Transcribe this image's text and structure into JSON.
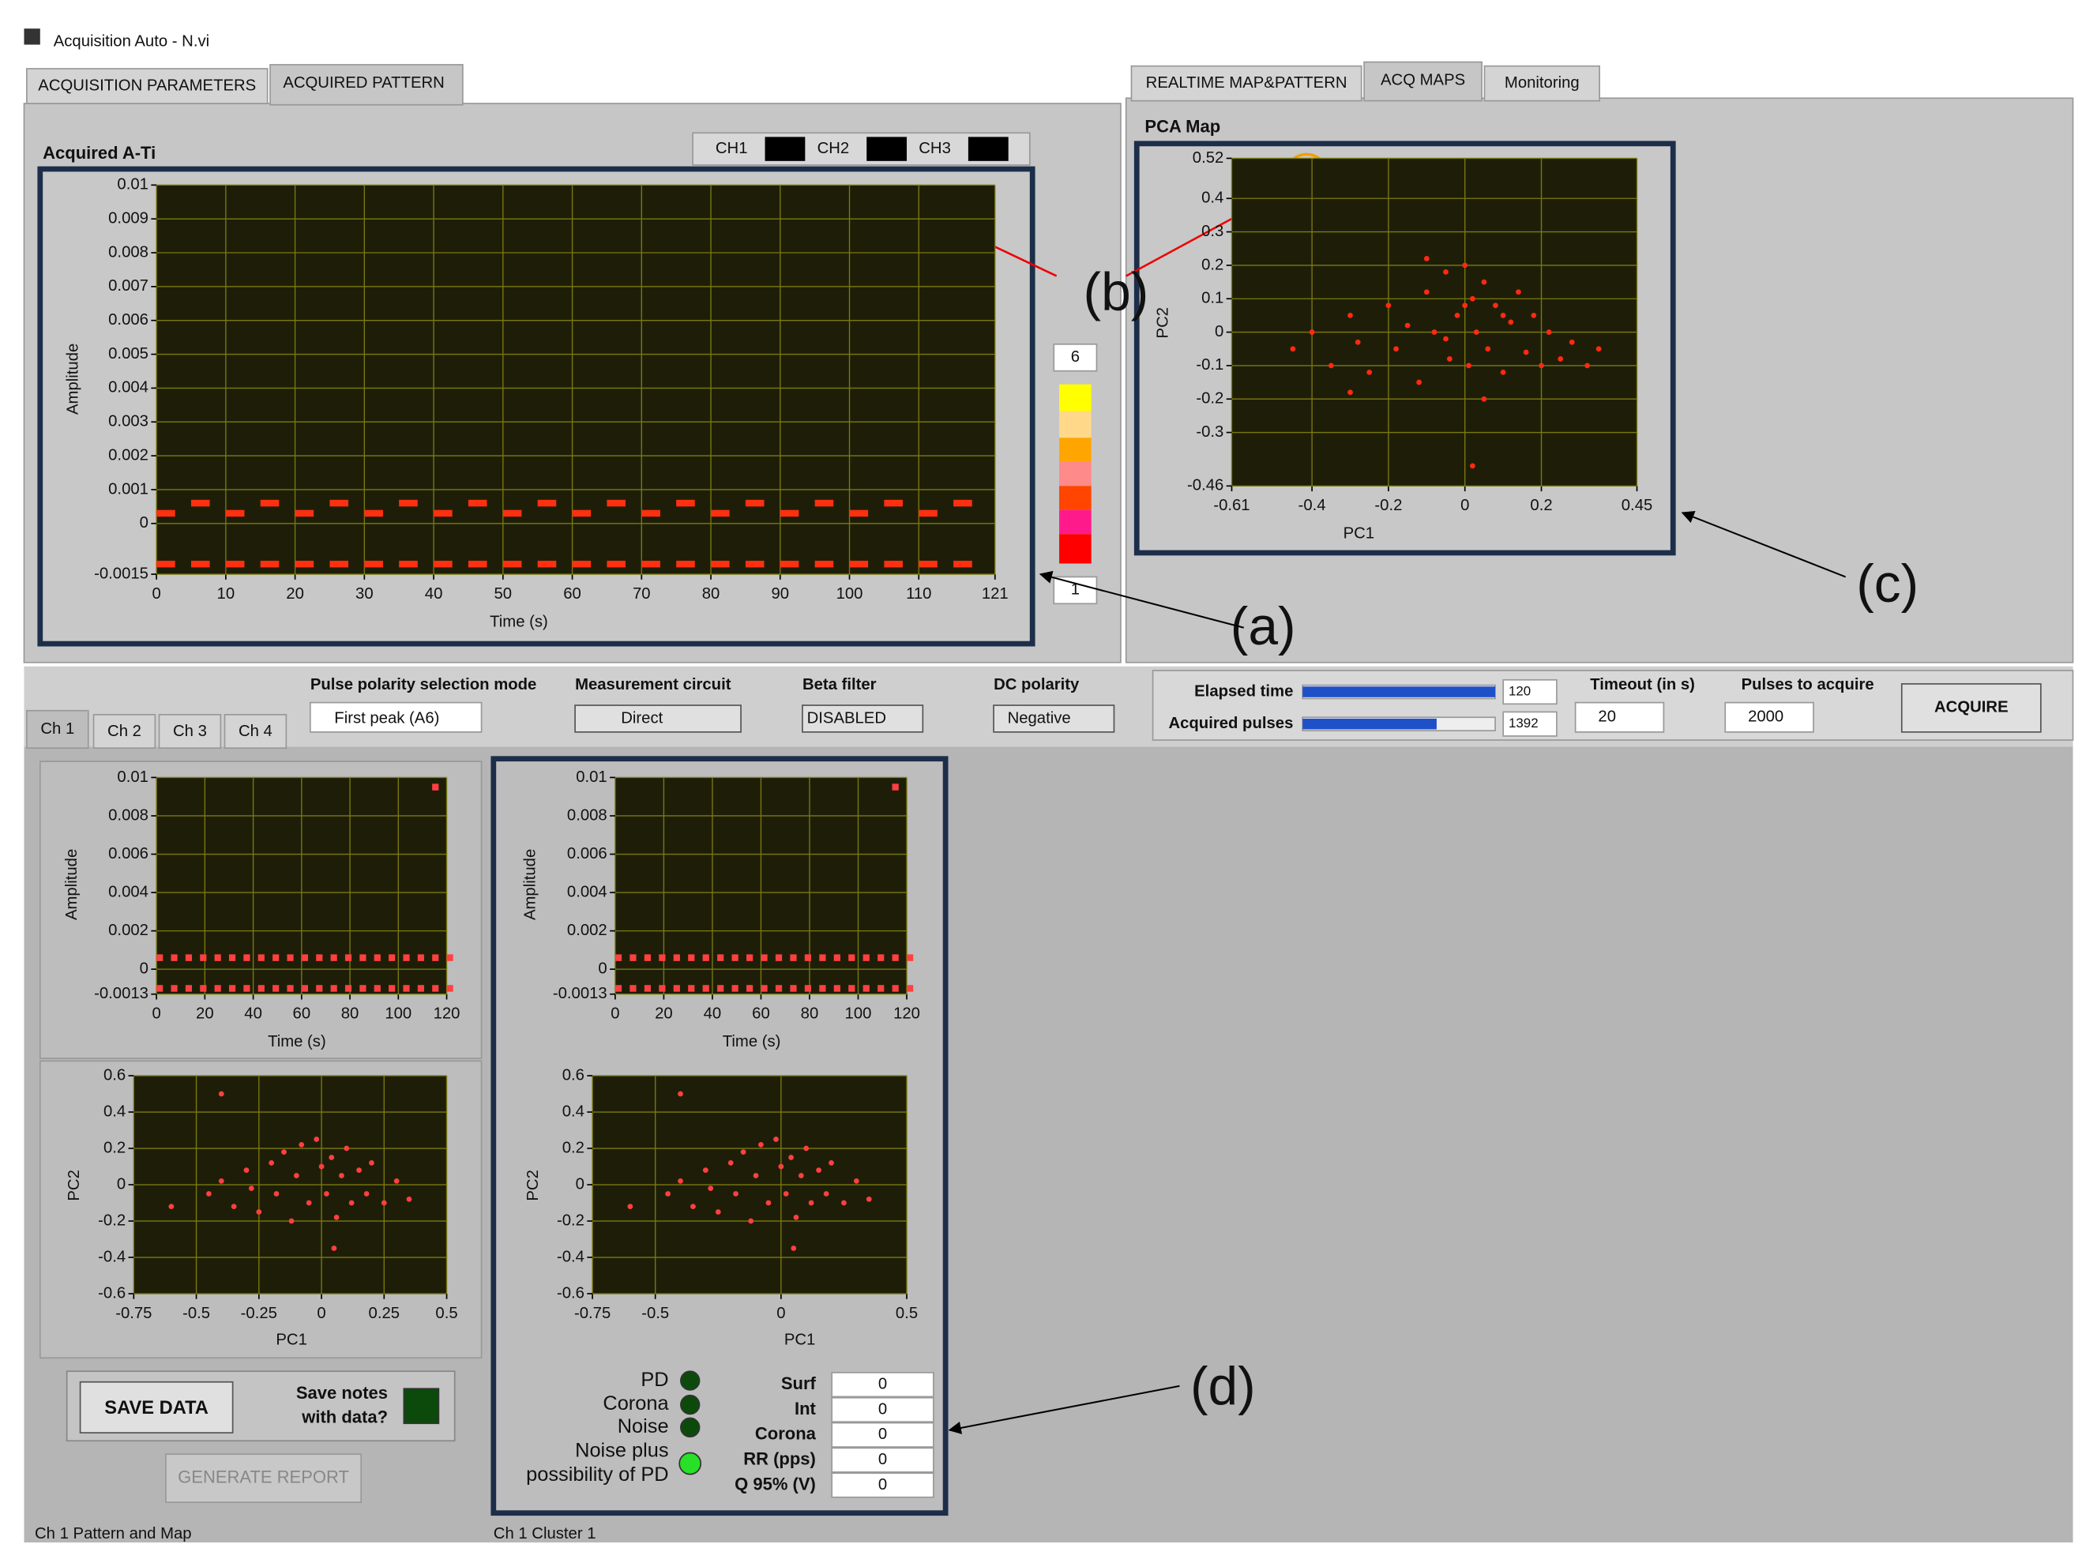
{
  "window_title": "Acquisition Auto - N.vi",
  "left_tabs": [
    "ACQUISITION PARAMETERS",
    "ACQUIRED PATTERN"
  ],
  "right_tabs": [
    "REALTIME MAP&PATTERN",
    "ACQ MAPS",
    "Monitoring"
  ],
  "channel_legend": [
    "CH1",
    "CH2",
    "CH3"
  ],
  "color_scale": {
    "max": 6,
    "min": 1
  },
  "annotations": [
    "(a)",
    "(b)",
    "(c)",
    "(d)"
  ],
  "controls": {
    "polarity_label": "Pulse polarity selection mode",
    "polarity_value": "First peak (A6)",
    "circuit_label": "Measurement circuit",
    "circuit_value": "Direct",
    "beta_label": "Beta filter",
    "beta_value": "DISABLED",
    "dc_label": "DC polarity",
    "dc_value": "Negative"
  },
  "acquisition": {
    "elapsed_label": "Elapsed time",
    "elapsed_value": 120,
    "pulses_label": "Acquired pulses",
    "pulses_value": 1392,
    "timeout_label": "Timeout (in s)",
    "timeout_value": 20,
    "target_label": "Pulses to acquire",
    "target_value": 2000,
    "button": "ACQUIRE"
  },
  "channel_tabs": [
    "Ch 1",
    "Ch 2",
    "Ch 3",
    "Ch 4"
  ],
  "save_button": "SAVE DATA",
  "save_notes": [
    "Save notes",
    "with data?"
  ],
  "report_button": "GENERATE REPORT",
  "indicators": [
    "PD",
    "Corona",
    "Noise",
    "Noise plus",
    "possibility of PD"
  ],
  "results": {
    "labels": [
      "Surf",
      "Int",
      "Corona",
      "RR (pps)",
      "Q 95% (V)"
    ],
    "values": [
      0,
      0,
      0,
      0,
      0
    ]
  },
  "footers": [
    "Ch 1 Pattern and Map",
    "Ch 1 Cluster 1"
  ],
  "chart_data": [
    {
      "type": "scatter",
      "title": "Acquired A-Ti",
      "xlabel": "Time (s)",
      "ylabel": "Amplitude",
      "xlim": [
        0,
        121
      ],
      "ylim": [
        -0.0015,
        0.01
      ],
      "xticks": [
        0,
        10,
        20,
        30,
        40,
        50,
        60,
        70,
        80,
        90,
        100,
        110,
        121
      ],
      "yticks": [
        0.01,
        0.009,
        0.008,
        0.007,
        0.006,
        0.005,
        0.004,
        0.003,
        0.002,
        0.001,
        0,
        -0.0015
      ],
      "grid": true,
      "series": [
        {
          "color": "#ff3010",
          "x": [
            0,
            5,
            10,
            15,
            20,
            25,
            30,
            35,
            40,
            45,
            50,
            55,
            60,
            65,
            70,
            75,
            80,
            85,
            90,
            95,
            100,
            105,
            110,
            115
          ],
          "values": [
            0.0003,
            0.0006,
            0.0003,
            0.0006,
            0.0003,
            0.0006,
            0.0003,
            0.0006,
            0.0003,
            0.0006,
            0.0003,
            0.0006,
            0.0003,
            0.0006,
            0.0003,
            0.0006,
            0.0003,
            0.0006,
            0.0003,
            0.0006,
            0.0003,
            0.0006,
            0.0003,
            0.0006
          ]
        },
        {
          "color": "#ff3010",
          "x": [
            0,
            5,
            10,
            15,
            20,
            25,
            30,
            35,
            40,
            45,
            50,
            55,
            60,
            65,
            70,
            75,
            80,
            85,
            90,
            95,
            100,
            105,
            110,
            115
          ],
          "values": [
            -0.0012,
            -0.0012,
            -0.0012,
            -0.0012,
            -0.0012,
            -0.0012,
            -0.0012,
            -0.0012,
            -0.0012,
            -0.0012,
            -0.0012,
            -0.0012,
            -0.0012,
            -0.0012,
            -0.0012,
            -0.0012,
            -0.0012,
            -0.0012,
            -0.0012,
            -0.0012,
            -0.0012,
            -0.0012,
            -0.0012,
            -0.0012
          ]
        }
      ]
    },
    {
      "type": "scatter",
      "title": "PCA Map",
      "xlabel": "PC1",
      "ylabel": "PC2",
      "xlim": [
        -0.61,
        0.45
      ],
      "ylim": [
        -0.46,
        0.52
      ],
      "xticks": [
        -0.61,
        -0.4,
        -0.2,
        0,
        0.2,
        0.45
      ],
      "yticks": [
        0.52,
        0.4,
        0.3,
        0.2,
        0.1,
        0,
        -0.1,
        -0.2,
        -0.3,
        -0.46
      ],
      "grid": true,
      "series": [
        {
          "color": "#ff2a10",
          "x": [
            -0.45,
            -0.4,
            -0.35,
            -0.3,
            -0.28,
            -0.25,
            -0.2,
            -0.18,
            -0.15,
            -0.12,
            -0.1,
            -0.08,
            -0.05,
            -0.04,
            -0.02,
            0,
            0.01,
            0.02,
            0.03,
            0.05,
            0.06,
            0.08,
            0.1,
            0.12,
            0.14,
            0.16,
            0.18,
            0.2,
            0.22,
            0.25,
            0.28,
            0.32,
            0.35,
            -0.1,
            0.05,
            0.1,
            -0.05,
            0,
            -0.3,
            0.02
          ],
          "values": [
            -0.05,
            0,
            -0.1,
            0.05,
            -0.03,
            -0.12,
            0.08,
            -0.05,
            0.02,
            -0.15,
            0.12,
            0,
            0.18,
            -0.08,
            0.05,
            0.2,
            -0.1,
            0.1,
            0,
            0.15,
            -0.05,
            0.08,
            -0.12,
            0.03,
            0.12,
            -0.06,
            0.05,
            -0.1,
            0,
            -0.08,
            -0.03,
            -0.1,
            -0.05,
            0.22,
            -0.2,
            0.05,
            -0.02,
            0.08,
            -0.18,
            -0.4
          ]
        }
      ]
    },
    {
      "type": "scatter",
      "xlabel": "Time (s)",
      "ylabel": "Amplitude",
      "xlim": [
        0,
        120
      ],
      "ylim": [
        -0.0013,
        0.01
      ],
      "xticks": [
        0,
        20,
        40,
        60,
        80,
        100,
        120
      ],
      "yticks": [
        0.01,
        0.008,
        0.006,
        0.004,
        0.002,
        0,
        -0.0013
      ],
      "grid": true,
      "series": [
        {
          "color": "#ff4040",
          "x": [
            0,
            6,
            12,
            18,
            24,
            30,
            36,
            42,
            48,
            54,
            60,
            66,
            72,
            78,
            84,
            90,
            96,
            102,
            108,
            114,
            120,
            114
          ],
          "values": [
            0.0006,
            0.0006,
            0.0006,
            0.0006,
            0.0006,
            0.0006,
            0.0006,
            0.0006,
            0.0006,
            0.0006,
            0.0006,
            0.0006,
            0.0006,
            0.0006,
            0.0006,
            0.0006,
            0.0006,
            0.0006,
            0.0006,
            0.0006,
            0.0006,
            0.0095
          ]
        },
        {
          "color": "#ff4040",
          "x": [
            0,
            6,
            12,
            18,
            24,
            30,
            36,
            42,
            48,
            54,
            60,
            66,
            72,
            78,
            84,
            90,
            96,
            102,
            108,
            114,
            120
          ],
          "values": [
            -0.001,
            -0.001,
            -0.001,
            -0.001,
            -0.001,
            -0.001,
            -0.001,
            -0.001,
            -0.001,
            -0.001,
            -0.001,
            -0.001,
            -0.001,
            -0.001,
            -0.001,
            -0.001,
            -0.001,
            -0.001,
            -0.001,
            -0.001,
            -0.001
          ]
        }
      ]
    },
    {
      "type": "scatter",
      "xlabel": "PC1",
      "ylabel": "PC2",
      "xlim": [
        -0.75,
        0.5
      ],
      "ylim": [
        -0.6,
        0.6
      ],
      "xticks": [
        -0.75,
        -0.5,
        -0.25,
        0,
        0.25,
        0.5
      ],
      "yticks": [
        0.6,
        0.4,
        0.2,
        0,
        -0.2,
        -0.4,
        -0.6
      ],
      "grid": true,
      "series": [
        {
          "color": "#ff4040",
          "x": [
            -0.45,
            -0.4,
            -0.35,
            -0.3,
            -0.28,
            -0.25,
            -0.2,
            -0.18,
            -0.15,
            -0.12,
            -0.1,
            -0.08,
            -0.05,
            -0.02,
            0,
            0.02,
            0.04,
            0.06,
            0.08,
            0.1,
            0.12,
            0.15,
            0.18,
            0.2,
            0.25,
            0.3,
            0.35,
            -0.4,
            -0.6,
            0.05
          ],
          "values": [
            -0.05,
            0.02,
            -0.12,
            0.08,
            -0.02,
            -0.15,
            0.12,
            -0.05,
            0.18,
            -0.2,
            0.05,
            0.22,
            -0.1,
            0.25,
            0.1,
            -0.05,
            0.15,
            -0.18,
            0.05,
            0.2,
            -0.1,
            0.08,
            -0.05,
            0.12,
            -0.1,
            0.02,
            -0.08,
            0.5,
            -0.12,
            -0.35
          ]
        }
      ]
    },
    {
      "type": "scatter",
      "xlabel": "Time (s)",
      "ylabel": "Amplitude",
      "xlim": [
        0,
        120
      ],
      "ylim": [
        -0.0013,
        0.01
      ],
      "xticks": [
        0,
        20,
        40,
        60,
        80,
        100,
        120
      ],
      "yticks": [
        0.01,
        0.008,
        0.006,
        0.004,
        0.002,
        0,
        -0.0013
      ],
      "grid": true,
      "series": [
        {
          "color": "#ff4040",
          "x": [
            0,
            6,
            12,
            18,
            24,
            30,
            36,
            42,
            48,
            54,
            60,
            66,
            72,
            78,
            84,
            90,
            96,
            102,
            108,
            114,
            120,
            114
          ],
          "values": [
            0.0006,
            0.0006,
            0.0006,
            0.0006,
            0.0006,
            0.0006,
            0.0006,
            0.0006,
            0.0006,
            0.0006,
            0.0006,
            0.0006,
            0.0006,
            0.0006,
            0.0006,
            0.0006,
            0.0006,
            0.0006,
            0.0006,
            0.0006,
            0.0006,
            0.0095
          ]
        },
        {
          "color": "#ff4040",
          "x": [
            0,
            6,
            12,
            18,
            24,
            30,
            36,
            42,
            48,
            54,
            60,
            66,
            72,
            78,
            84,
            90,
            96,
            102,
            108,
            114,
            120
          ],
          "values": [
            -0.001,
            -0.001,
            -0.001,
            -0.001,
            -0.001,
            -0.001,
            -0.001,
            -0.001,
            -0.001,
            -0.001,
            -0.001,
            -0.001,
            -0.001,
            -0.001,
            -0.001,
            -0.001,
            -0.001,
            -0.001,
            -0.001,
            -0.001,
            -0.001
          ]
        }
      ]
    },
    {
      "type": "scatter",
      "xlabel": "PC1",
      "ylabel": "PC2",
      "xlim": [
        -0.75,
        0.5
      ],
      "ylim": [
        -0.6,
        0.6
      ],
      "xticks": [
        -0.75,
        -0.5,
        0,
        0.5
      ],
      "yticks": [
        0.6,
        0.4,
        0.2,
        0,
        -0.2,
        -0.4,
        -0.6
      ],
      "grid": true,
      "series": [
        {
          "color": "#ff4040",
          "x": [
            -0.45,
            -0.4,
            -0.35,
            -0.3,
            -0.28,
            -0.25,
            -0.2,
            -0.18,
            -0.15,
            -0.12,
            -0.1,
            -0.08,
            -0.05,
            -0.02,
            0,
            0.02,
            0.04,
            0.06,
            0.08,
            0.1,
            0.12,
            0.15,
            0.18,
            0.2,
            0.25,
            0.3,
            0.35,
            -0.4,
            -0.6,
            0.05
          ],
          "values": [
            -0.05,
            0.02,
            -0.12,
            0.08,
            -0.02,
            -0.15,
            0.12,
            -0.05,
            0.18,
            -0.2,
            0.05,
            0.22,
            -0.1,
            0.25,
            0.1,
            -0.05,
            0.15,
            -0.18,
            0.05,
            0.2,
            -0.1,
            0.08,
            -0.05,
            0.12,
            -0.1,
            0.02,
            -0.08,
            0.5,
            -0.12,
            -0.35
          ]
        }
      ]
    }
  ]
}
